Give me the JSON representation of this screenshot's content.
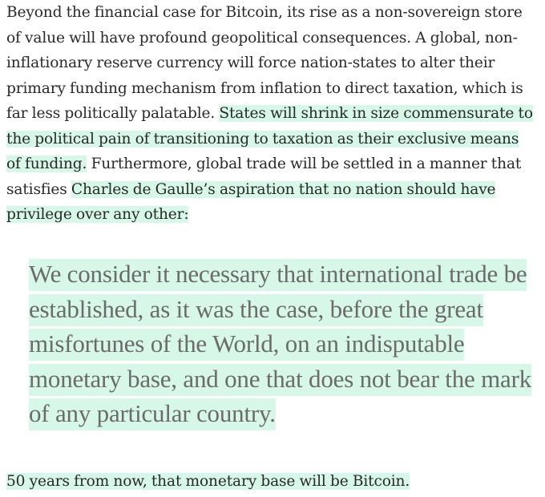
{
  "article": {
    "paragraph1": {
      "text_a": "Beyond the financial case for Bitcoin, its rise as a non-sovereign store of value will have profound geopolitical consequences. A global, non-inflationary reserve currency will force nation-states to alter their primary funding mechanism from inflation to direct taxation, which is far less politically palatable. ",
      "highlight_a": "States will shrink in size commensurate to the political pain of transitioning to taxation as their exclusive means of funding.",
      "text_b": " Furthermore, global trade will be settled in a manner that satisfies ",
      "highlight_b": "Charles de Gaulle’s aspiration that no nation should have privilege over any other:"
    },
    "blockquote": {
      "highlight": "We consider it necessary that international trade be established, as it was the case, before the great misfortunes of the World, on an indisputable monetary base, and one that does not bear the mark of any particular country."
    },
    "paragraph2": {
      "highlight": "50 years from now, that monetary base will be Bitcoin."
    },
    "colors": {
      "highlight": "#d7f7e8",
      "body_text": "#292929",
      "quote_text": "#6b6b6b"
    }
  }
}
